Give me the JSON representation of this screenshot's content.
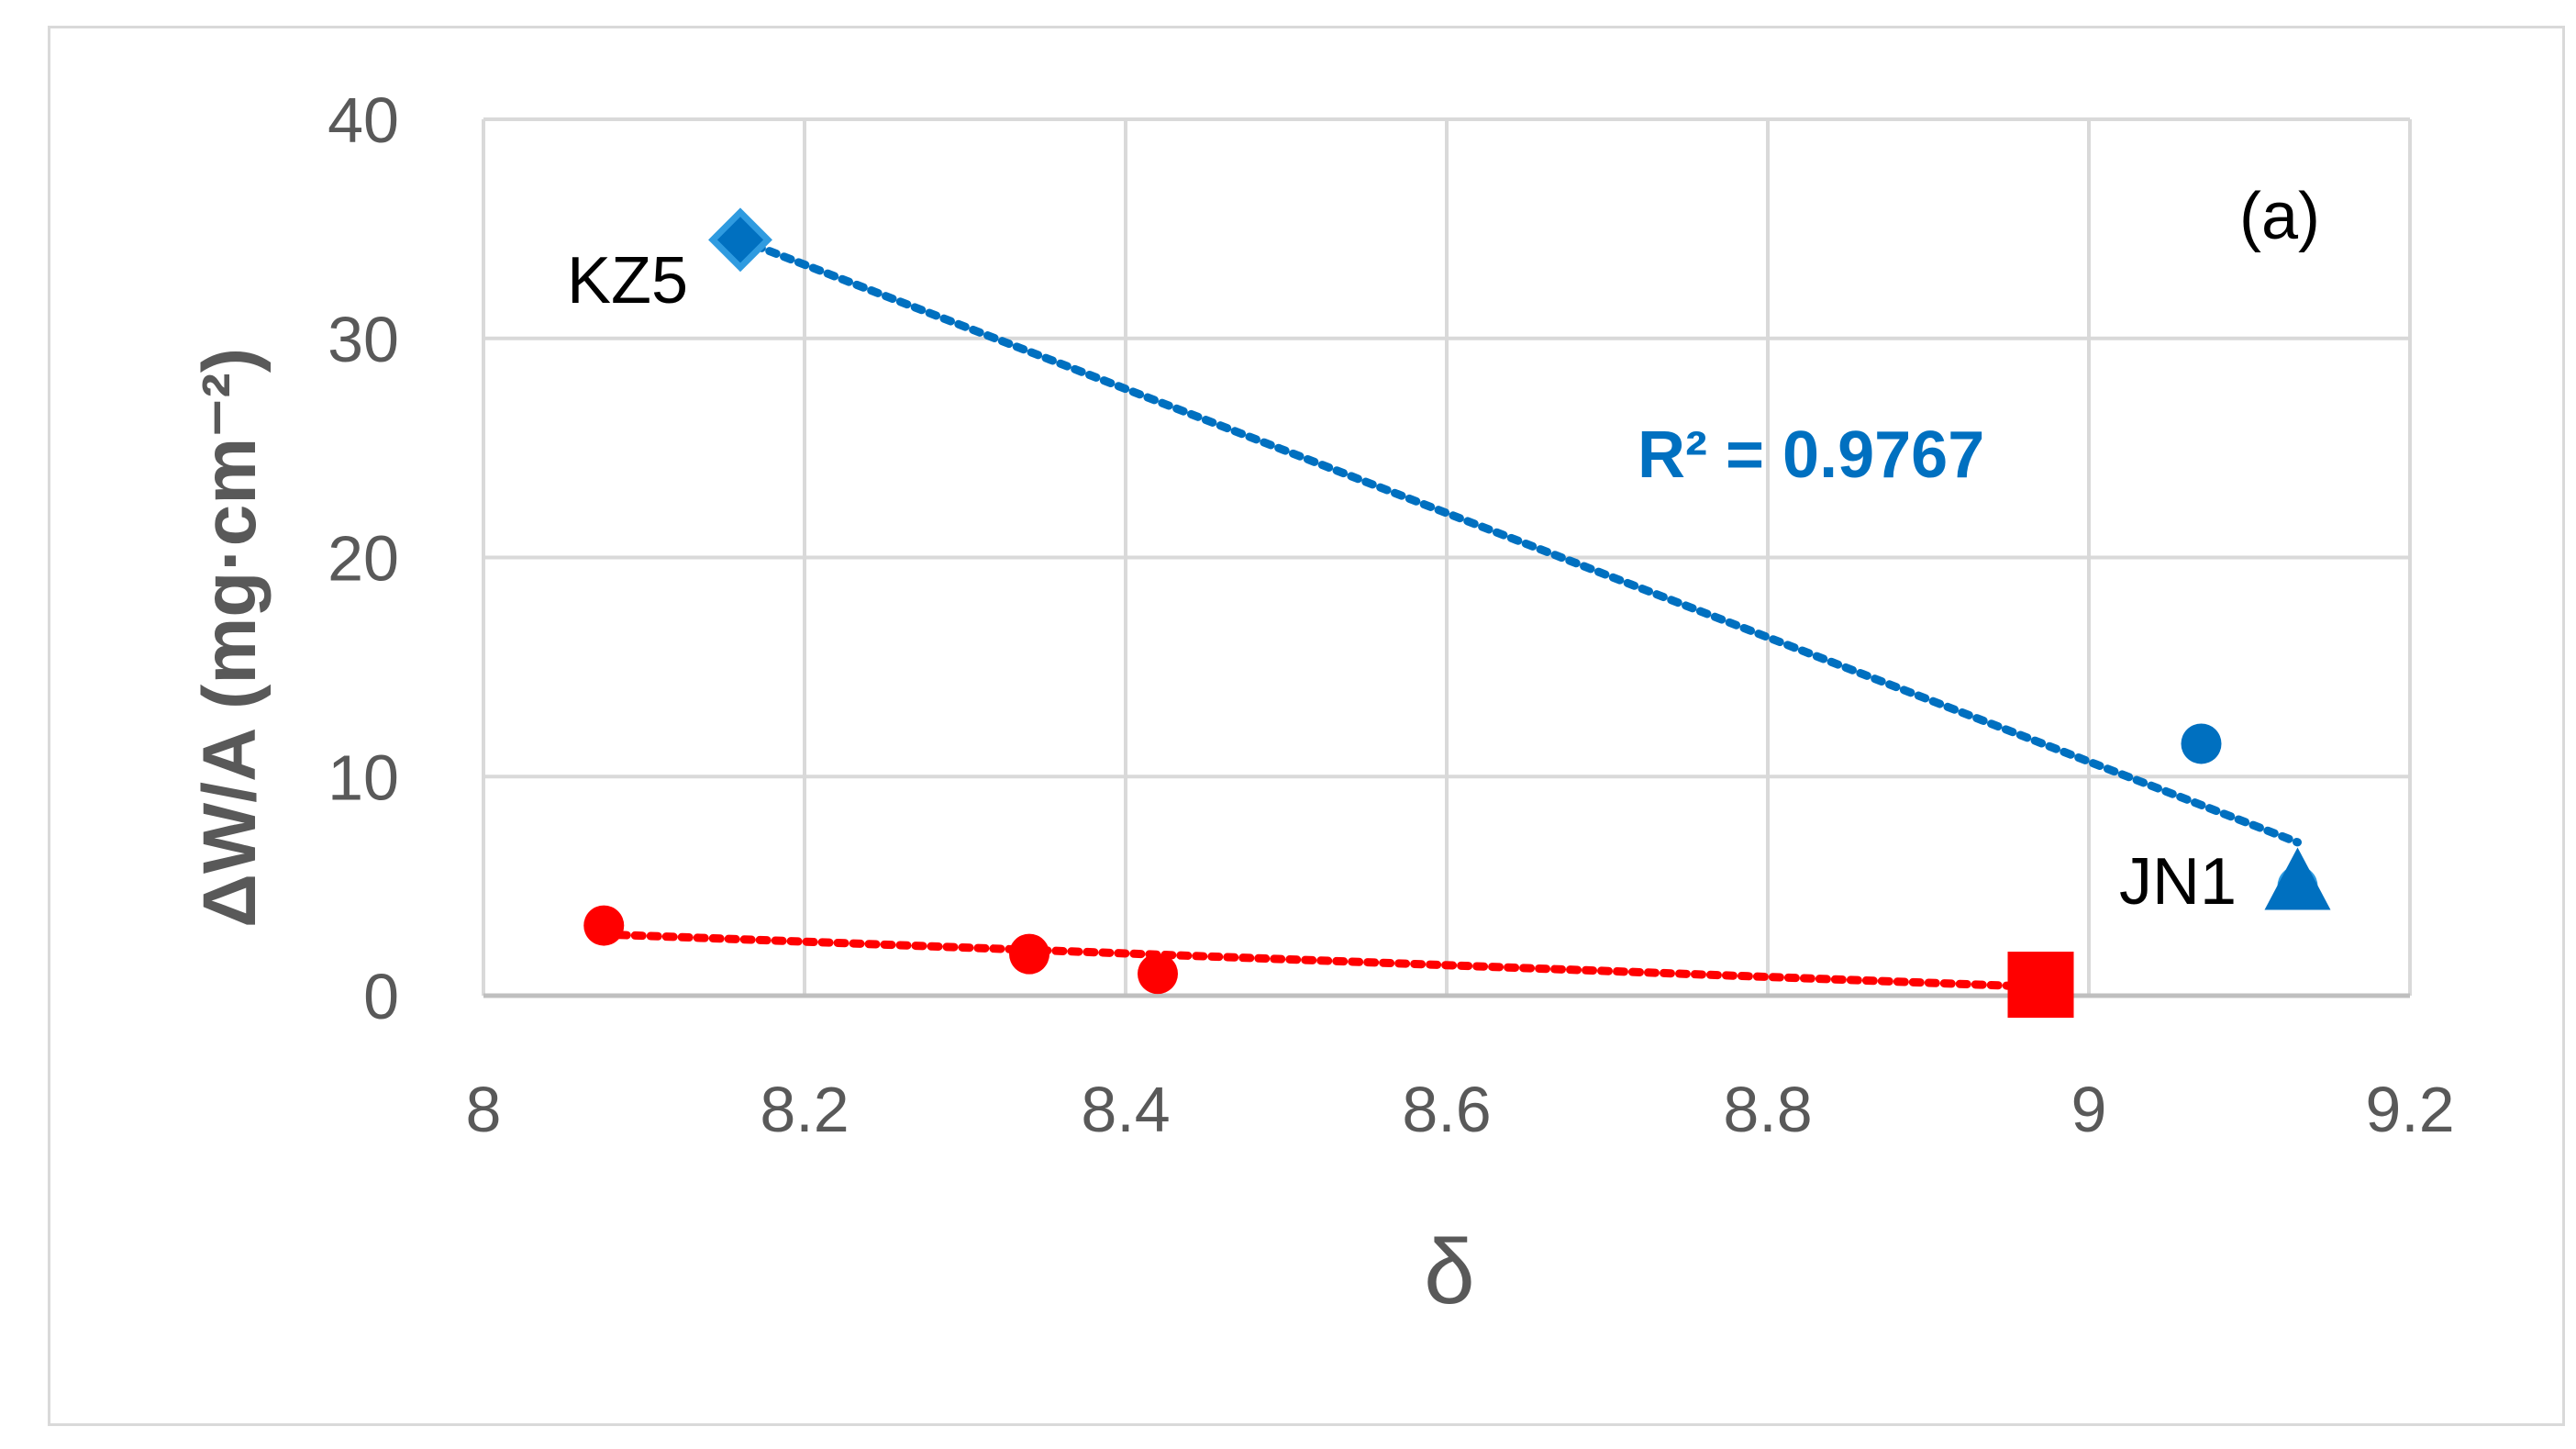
{
  "chart_data": {
    "type": "scatter",
    "panel_label": "(a)",
    "xlabel": "δ",
    "ylabel": "ΔW/A (mg·cm⁻²)",
    "xlim": [
      8,
      9.2
    ],
    "ylim": [
      0,
      40
    ],
    "x_ticks": [
      "8",
      "8.2",
      "8.4",
      "8.6",
      "8.8",
      "9",
      "9.2"
    ],
    "y_ticks": [
      "0",
      "10",
      "20",
      "30",
      "40"
    ],
    "grid": true,
    "legend": "none",
    "colors": {
      "blue": "#0070c0",
      "light_blue": "#2f9be0",
      "red": "#ff0000",
      "grid": "#d9d9d9",
      "axis": "#bfbfbf"
    },
    "series": [
      {
        "color": "#0070c0",
        "points": [
          {
            "x": 8.16,
            "y": 34.5,
            "marker": "diamond",
            "label": "KZ5"
          },
          {
            "x": 9.07,
            "y": 11.5,
            "marker": "circle",
            "label": ""
          },
          {
            "x": 9.13,
            "y": 5.0,
            "marker": "circle",
            "label": ""
          },
          {
            "x": 9.13,
            "y": 5.0,
            "marker": "triangle",
            "label": "JN1"
          }
        ],
        "trendline": {
          "x": [
            8.16,
            9.13
          ],
          "y": [
            34.5,
            7.0
          ],
          "style": "dotted"
        },
        "r_squared_text": "R² = 0.9767"
      },
      {
        "color": "#ff0000",
        "points": [
          {
            "x": 8.075,
            "y": 3.2,
            "marker": "circle"
          },
          {
            "x": 8.34,
            "y": 1.9,
            "marker": "circle"
          },
          {
            "x": 8.42,
            "y": 1.0,
            "marker": "circle"
          },
          {
            "x": 8.97,
            "y": 0.5,
            "marker": "square"
          }
        ],
        "trendline": {
          "x": [
            8.075,
            8.97
          ],
          "y": [
            2.8,
            0.4
          ],
          "style": "dotted"
        }
      }
    ]
  }
}
